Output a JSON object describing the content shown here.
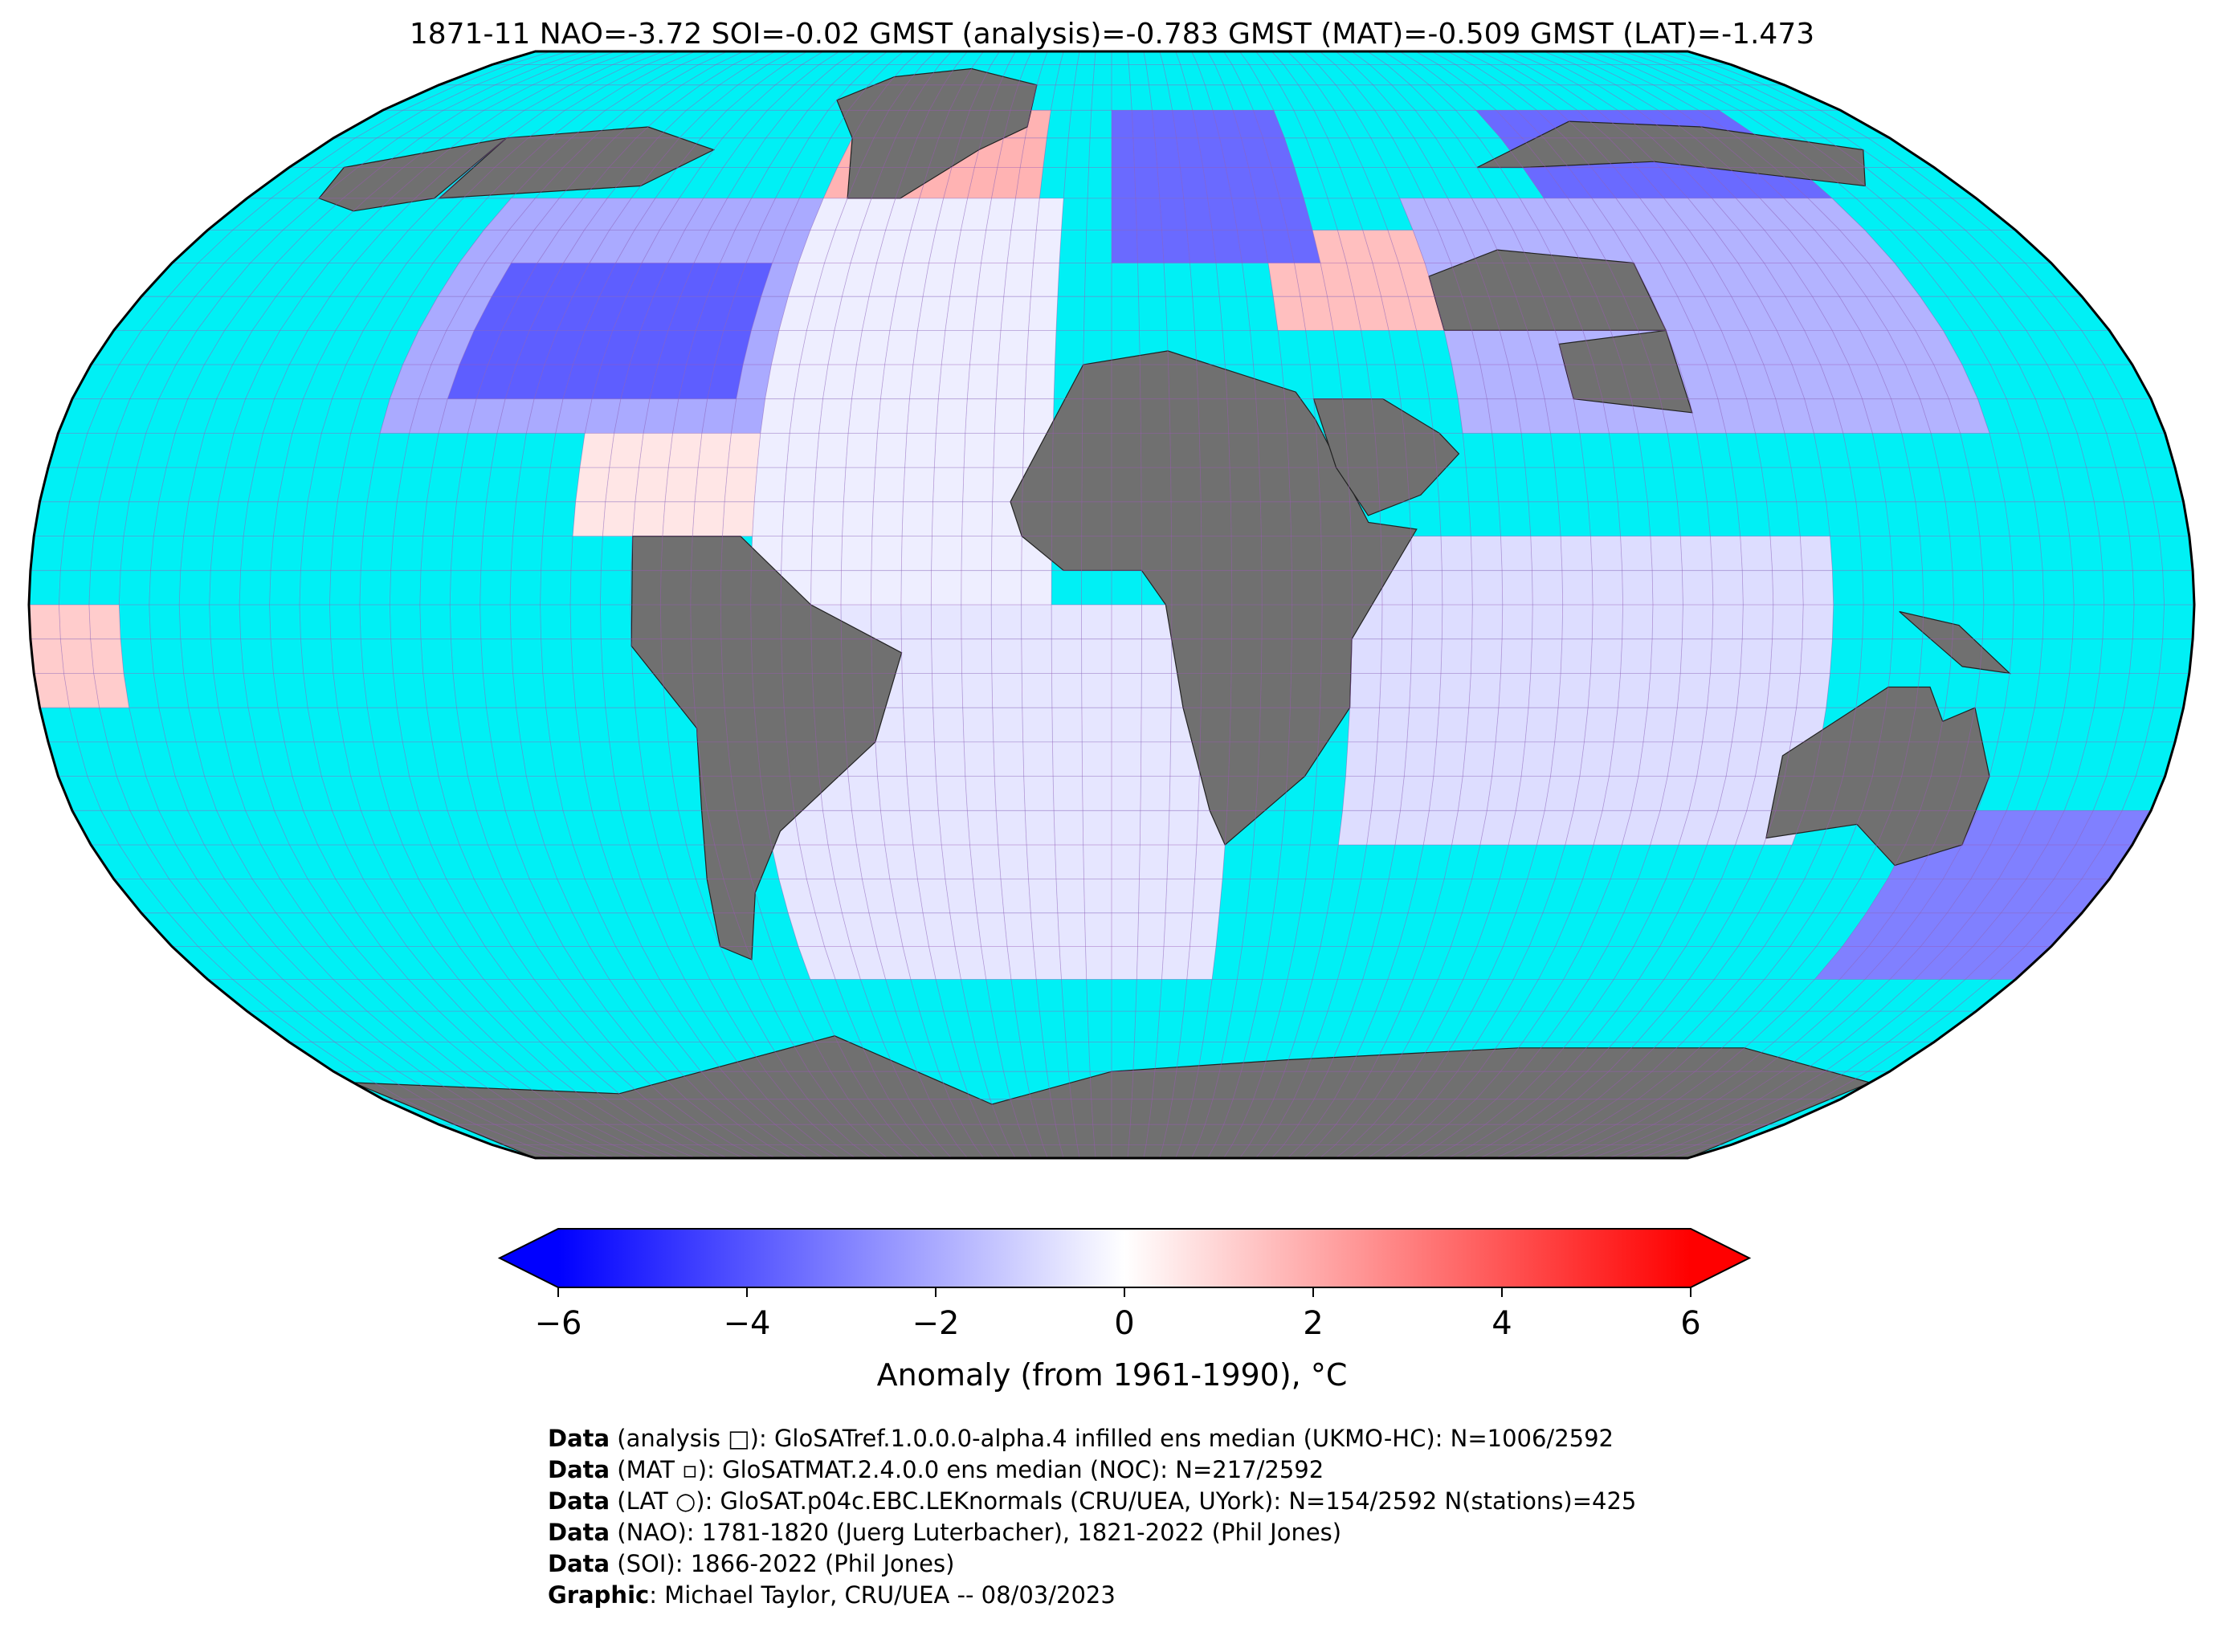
{
  "title": "1871-11 NAO=-3.72 SOI=-0.02 GMST (analysis)=-0.783 GMST (MAT)=-0.509 GMST (LAT)=-1.473",
  "map": {
    "projection": "Robinson",
    "ocean_unfilled_color": "#00f0f5",
    "land_missing_color": "#707070",
    "colormap": "bwr",
    "grid_resolution_deg": 5
  },
  "colorbar": {
    "vmin": -6,
    "vmax": 6,
    "ticks": [
      "−6",
      "−4",
      "−2",
      "0",
      "2",
      "4",
      "6"
    ],
    "tick_values": [
      -6,
      -4,
      -2,
      0,
      2,
      4,
      6
    ],
    "extend": "both",
    "label": "Anomaly (from 1961-1990), °C",
    "colors": {
      "min": "#0000ff",
      "mid": "#ffffff",
      "max": "#ff0000"
    }
  },
  "credits": [
    {
      "key": "Data",
      "text": " (analysis □): GloSATref.1.0.0.0-alpha.4 infilled ens median (UKMO-HC): N=1006/2592"
    },
    {
      "key": "Data",
      "text": " (MAT ▫): GloSATMAT.2.4.0.0 ens median (NOC): N=217/2592"
    },
    {
      "key": "Data",
      "text": " (LAT ○): GloSAT.p04c.EBC.LEKnormals (CRU/UEA, UYork): N=154/2592 N(stations)=425"
    },
    {
      "key": "Data",
      "text": " (NAO): 1781-1820 (Juerg Luterbacher), 1821-2022 (Phil Jones)"
    },
    {
      "key": "Data",
      "text": " (SOI): 1866-2022 (Phil Jones)"
    },
    {
      "key": "Graphic",
      "text": ": Michael Taylor, CRU/UEA -- 08/03/2023"
    }
  ],
  "regions": [
    {
      "name": "north-america-cold",
      "lon": [
        -115,
        -65
      ],
      "lat": [
        30,
        50
      ],
      "value": -3.8
    },
    {
      "name": "north-america-cool",
      "lon": [
        -125,
        -60
      ],
      "lat": [
        25,
        60
      ],
      "value": -2.0
    },
    {
      "name": "greenland-warm",
      "lon": [
        -60,
        -15
      ],
      "lat": [
        60,
        75
      ],
      "value": 1.8
    },
    {
      "name": "north-atlantic",
      "lon": [
        -60,
        -10
      ],
      "lat": [
        0,
        60
      ],
      "value": -0.4
    },
    {
      "name": "caribbean-warm",
      "lon": [
        -90,
        -60
      ],
      "lat": [
        10,
        25
      ],
      "value": 0.6
    },
    {
      "name": "scandinavia-cold",
      "lon": [
        0,
        40
      ],
      "lat": [
        50,
        75
      ],
      "value": -3.5
    },
    {
      "name": "black-sea-warm",
      "lon": [
        30,
        60
      ],
      "lat": [
        40,
        55
      ],
      "value": 1.5
    },
    {
      "name": "siberia-cold",
      "lon": [
        90,
        150
      ],
      "lat": [
        60,
        75
      ],
      "value": -3.5
    },
    {
      "name": "central-asia",
      "lon": [
        60,
        150
      ],
      "lat": [
        25,
        60
      ],
      "value": -1.8
    },
    {
      "name": "indian-ocean",
      "lon": [
        40,
        120
      ],
      "lat": [
        -35,
        10
      ],
      "value": -0.8
    },
    {
      "name": "south-atlantic",
      "lon": [
        -60,
        20
      ],
      "lat": [
        -55,
        0
      ],
      "value": -0.6
    },
    {
      "name": "tasman-cold",
      "lon": [
        140,
        180
      ],
      "lat": [
        -55,
        -30
      ],
      "value": -3.0
    },
    {
      "name": "pacific-warm-spot",
      "lon": [
        -180,
        -165
      ],
      "lat": [
        -15,
        0
      ],
      "value": 1.2
    }
  ]
}
